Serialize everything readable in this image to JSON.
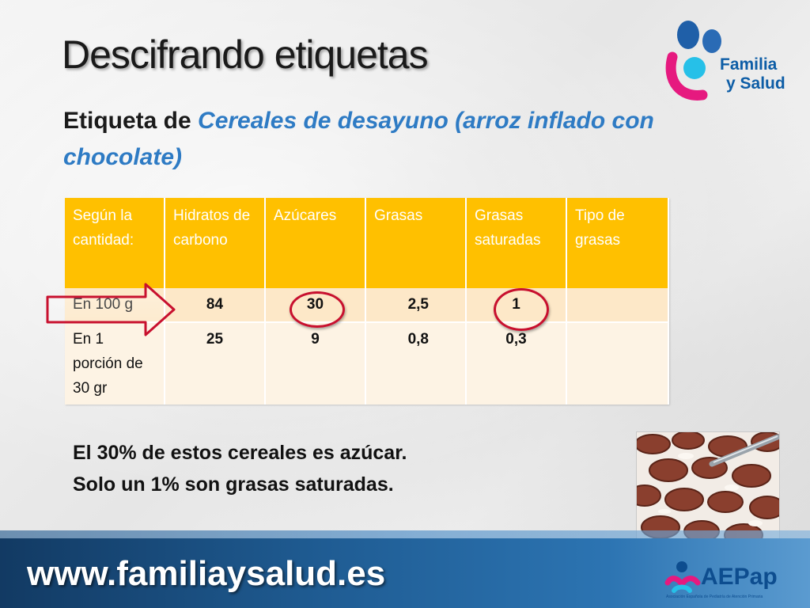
{
  "title": "Descifrando etiquetas",
  "subtitle": {
    "prefix": "Etiqueta de ",
    "highlight": "Cereales de desayuno (arroz inflado con chocolate)"
  },
  "logo_top": {
    "line1": "Familia",
    "line2": "y Salud"
  },
  "table": {
    "headers": [
      "Según la cantidad:",
      "Hidratos de carbono",
      "Azúcares",
      "Grasas",
      "Grasas saturadas",
      "Tipo de grasas"
    ],
    "rows": [
      {
        "label": "En 100 g",
        "values": [
          "84",
          "30",
          "2,5",
          "1",
          ""
        ]
      },
      {
        "label": "En 1 porción de 30 gr",
        "values": [
          "25",
          "9",
          "0,8",
          "0,3",
          ""
        ]
      }
    ]
  },
  "note": {
    "line1": "El 30% de estos cereales es azúcar.",
    "line2": "Solo un 1% son grasas saturadas."
  },
  "footer": {
    "url": "www.familiaysalud.es",
    "logo": "AEPap",
    "logo_sub": "Asociación Española de Pediatría de Atención Primaria"
  },
  "colors": {
    "header_bg": "#ffc000",
    "row1_bg": "#fde8c8",
    "row2_bg": "#fdf3e4",
    "highlight_text": "#2e7bc4",
    "circle": "#c8102e",
    "footer": "#1f5c93"
  }
}
